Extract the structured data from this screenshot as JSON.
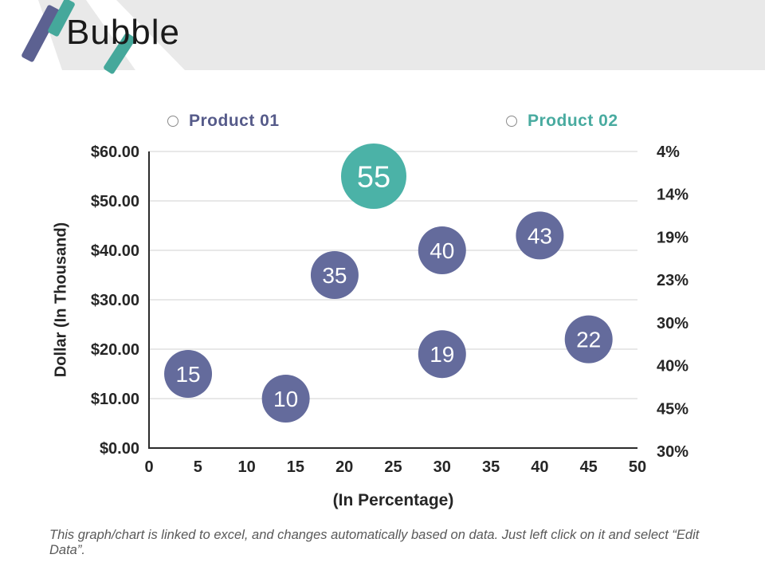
{
  "header": {
    "title": "Bubble"
  },
  "legend": [
    {
      "marker": "circle-outline",
      "label": "Product 01",
      "color": "#565b8a"
    },
    {
      "marker": "circle-outline",
      "label": "Product 02",
      "color": "#49aba0"
    }
  ],
  "chart_data": {
    "type": "scatter",
    "subtype": "bubble",
    "xlabel": "(In Percentage)",
    "ylabel": "Dollar  (In Thousand)",
    "xlim": [
      0,
      50
    ],
    "ylim": [
      0,
      60
    ],
    "grid": "horizontal",
    "x_ticks": [
      0,
      5,
      10,
      15,
      20,
      25,
      30,
      35,
      40,
      45,
      50
    ],
    "y_ticks": [
      {
        "value": 60,
        "label": "$60.00"
      },
      {
        "value": 50,
        "label": "$50.00"
      },
      {
        "value": 40,
        "label": "$40.00"
      },
      {
        "value": 30,
        "label": "$30.00"
      },
      {
        "value": 20,
        "label": "$20.00"
      },
      {
        "value": 10,
        "label": "$10.00"
      },
      {
        "value": 0,
        "label": "$0.00"
      }
    ],
    "right_labels": [
      "4%",
      "14%",
      "19%",
      "23%",
      "30%",
      "40%",
      "45%",
      "30%"
    ],
    "series": [
      {
        "name": "Product 01",
        "color": "#646b9c",
        "radius": 30,
        "points": [
          {
            "x": 4,
            "y": 15,
            "label": "15"
          },
          {
            "x": 14,
            "y": 10,
            "label": "10"
          },
          {
            "x": 19,
            "y": 35,
            "label": "35"
          },
          {
            "x": 30,
            "y": 40,
            "label": "40"
          },
          {
            "x": 30,
            "y": 19,
            "label": "19"
          },
          {
            "x": 40,
            "y": 43,
            "label": "43"
          },
          {
            "x": 45,
            "y": 22,
            "label": "22"
          }
        ]
      },
      {
        "name": "Product 02",
        "color": "#4bb2a7",
        "radius": 41,
        "points": [
          {
            "x": 23,
            "y": 55,
            "label": "55"
          }
        ]
      }
    ]
  },
  "footer": {
    "note": "This graph/chart is linked to excel, and changes automatically based on data. Just left click on it and select “Edit Data”."
  },
  "colors": {
    "accent_purple": "#5c6191",
    "accent_teal": "#45a89b",
    "header_band": "#e9e9e9",
    "gridline": "#d9d9d9",
    "axis": "#2b2b2b"
  }
}
